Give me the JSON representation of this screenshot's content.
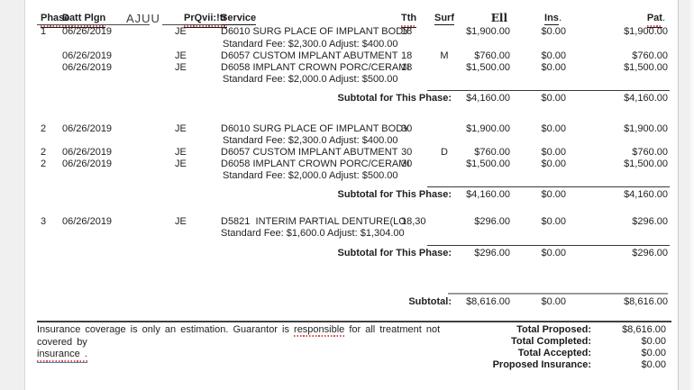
{
  "header": {
    "phase": "Phase",
    "date": "Datt Plgn",
    "ajuu": "AJUU",
    "provider": "PrQvii:!tr",
    "service": "Service",
    "tth": "Tth",
    "surf": "Surf",
    "fee": "Ell",
    "ins": "Ins",
    "ins_suffix": ".",
    "pat": "Pat",
    "pat_suffix": "."
  },
  "subtotal_label": "Subtotal for This Phase:",
  "sections": [
    {
      "rows": [
        {
          "phase": "1",
          "date": "06/26/2019",
          "prov": "JE",
          "service": "D6010 SURG PLACE OF IMPLANT BODY",
          "tth": "18",
          "surf": "",
          "fee": "$1,900.00",
          "ins": "$0.00",
          "pat": "$1,900.00",
          "std": "Standard Fee: $2,300.0 Adjust: $400.00"
        },
        {
          "phase": "",
          "date": "06/26/2019",
          "prov": "JE",
          "service": "D6057 CUSTOM IMPLANT ABUTMENT",
          "tth": "18",
          "surf": "M",
          "fee": "$760.00",
          "ins": "$0.00",
          "pat": "$760.00",
          "std": null
        },
        {
          "phase": "",
          "date": "06/26/2019",
          "prov": "JE",
          "service": "D6058 IMPLANT CROWN PORC/CERAMI",
          "tth": "18",
          "surf": "",
          "fee": "$1,500.00",
          "ins": "$0.00",
          "pat": "$1,500.00",
          "std": "Standard Fee: $2,000.0 Adjust: $500.00"
        }
      ],
      "subtotal": {
        "fee": "$4,160.00",
        "ins": "$0.00",
        "pat": "$4,160.00"
      }
    },
    {
      "rows": [
        {
          "phase": "2",
          "date": "06/26/2019",
          "prov": "JE",
          "service": "D6010 SURG PLACE OF IMPLANT BODY",
          "tth": "30",
          "surf": "",
          "fee": "$1,900.00",
          "ins": "$0.00",
          "pat": "$1,900.00",
          "std": "Standard Fee: $2,300.0 Adjust: $400.00"
        },
        {
          "phase": "2",
          "date": "06/26/2019",
          "prov": "JE",
          "service": "D6057 CUSTOM IMPLANT ABUTMENT",
          "tth": "30",
          "surf": "D",
          "fee": "$760.00",
          "ins": "$0.00",
          "pat": "$760.00",
          "std": null
        },
        {
          "phase": "2",
          "date": "06/26/2019",
          "prov": "JE",
          "service": "D6058 IMPLANT CROWN PORC/CERAMI",
          "tth": "30",
          "surf": "",
          "fee": "$1,500.00",
          "ins": "$0.00",
          "pat": "$1,500.00",
          "std": "Standard Fee: $2,000.0 Adjust: $500.00"
        }
      ],
      "subtotal": {
        "fee": "$4,160.00",
        "ins": "$0.00",
        "pat": "$4,160.00"
      }
    },
    {
      "rows": [
        {
          "phase": "3",
          "date": "06/26/2019",
          "prov": "JE",
          "service": "D5821  INTERIM PARTIAL DENTURE(LO",
          "tth": "18,30",
          "surf": "",
          "fee": "$296.00",
          "ins": "$0.00",
          "pat": "$296.00",
          "std": "Standard Fee: $1,600.0 Adjust: $1,304.00"
        }
      ],
      "subtotal": {
        "fee": "$296.00",
        "ins": "$0.00",
        "pat": "$296.00"
      }
    }
  ],
  "grand": {
    "label": "Subtotal:",
    "fee": "$8,616.00",
    "ins": "$0.00",
    "pat": "$8,616.00"
  },
  "note": {
    "prefix": "Insurance coverage is only an estimation. Guarantor is ",
    "flagged": "responsible",
    "suffix": " for all treatment not covered by",
    "line2": "insurance ."
  },
  "totals": [
    {
      "label": "Total Proposed:",
      "value": "$8,616.00"
    },
    {
      "label": "Total Completed:",
      "value": "$0.00"
    },
    {
      "label": "Total Accepted:",
      "value": "$0.00"
    },
    {
      "label": "Proposed Insurance:",
      "value": "$0.00"
    }
  ],
  "colors": {
    "squiggle": "#cf5050",
    "underline": "#1a1a1a",
    "note_underline": "#5b7fb0",
    "page": "#ffffff",
    "gutter": "#f0f0f0"
  }
}
